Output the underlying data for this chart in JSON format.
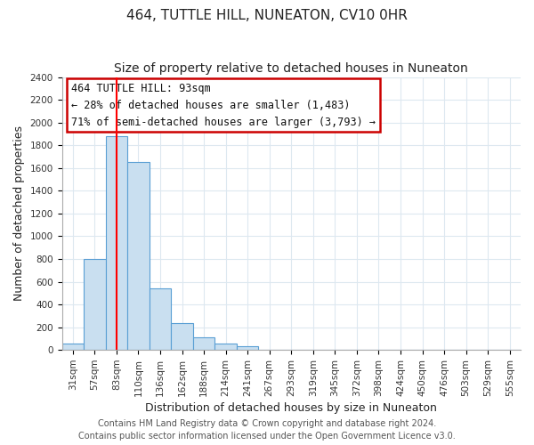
{
  "title": "464, TUTTLE HILL, NUNEATON, CV10 0HR",
  "subtitle": "Size of property relative to detached houses in Nuneaton",
  "xlabel": "Distribution of detached houses by size in Nuneaton",
  "ylabel": "Number of detached properties",
  "bar_labels": [
    "31sqm",
    "57sqm",
    "83sqm",
    "110sqm",
    "136sqm",
    "162sqm",
    "188sqm",
    "214sqm",
    "241sqm",
    "267sqm",
    "293sqm",
    "319sqm",
    "345sqm",
    "372sqm",
    "398sqm",
    "424sqm",
    "450sqm",
    "476sqm",
    "503sqm",
    "529sqm",
    "555sqm"
  ],
  "bar_heights": [
    55,
    800,
    1880,
    1650,
    540,
    235,
    110,
    55,
    30,
    0,
    0,
    0,
    0,
    0,
    0,
    0,
    0,
    0,
    0,
    0,
    0
  ],
  "bar_color": "#c9dff0",
  "bar_edge_color": "#5a9fd4",
  "vline_x_index": 2,
  "vline_color": "#ff0000",
  "ylim": [
    0,
    2400
  ],
  "yticks": [
    0,
    200,
    400,
    600,
    800,
    1000,
    1200,
    1400,
    1600,
    1800,
    2000,
    2200,
    2400
  ],
  "annotation_title": "464 TUTTLE HILL: 93sqm",
  "annotation_line1": "← 28% of detached houses are smaller (1,483)",
  "annotation_line2": "71% of semi-detached houses are larger (3,793) →",
  "footer_line1": "Contains HM Land Registry data © Crown copyright and database right 2024.",
  "footer_line2": "Contains public sector information licensed under the Open Government Licence v3.0.",
  "bg_color": "#ffffff",
  "grid_color": "#dde8f0",
  "title_fontsize": 11,
  "subtitle_fontsize": 10,
  "axis_label_fontsize": 9,
  "tick_fontsize": 7.5,
  "annotation_fontsize": 8.5,
  "footer_fontsize": 7
}
